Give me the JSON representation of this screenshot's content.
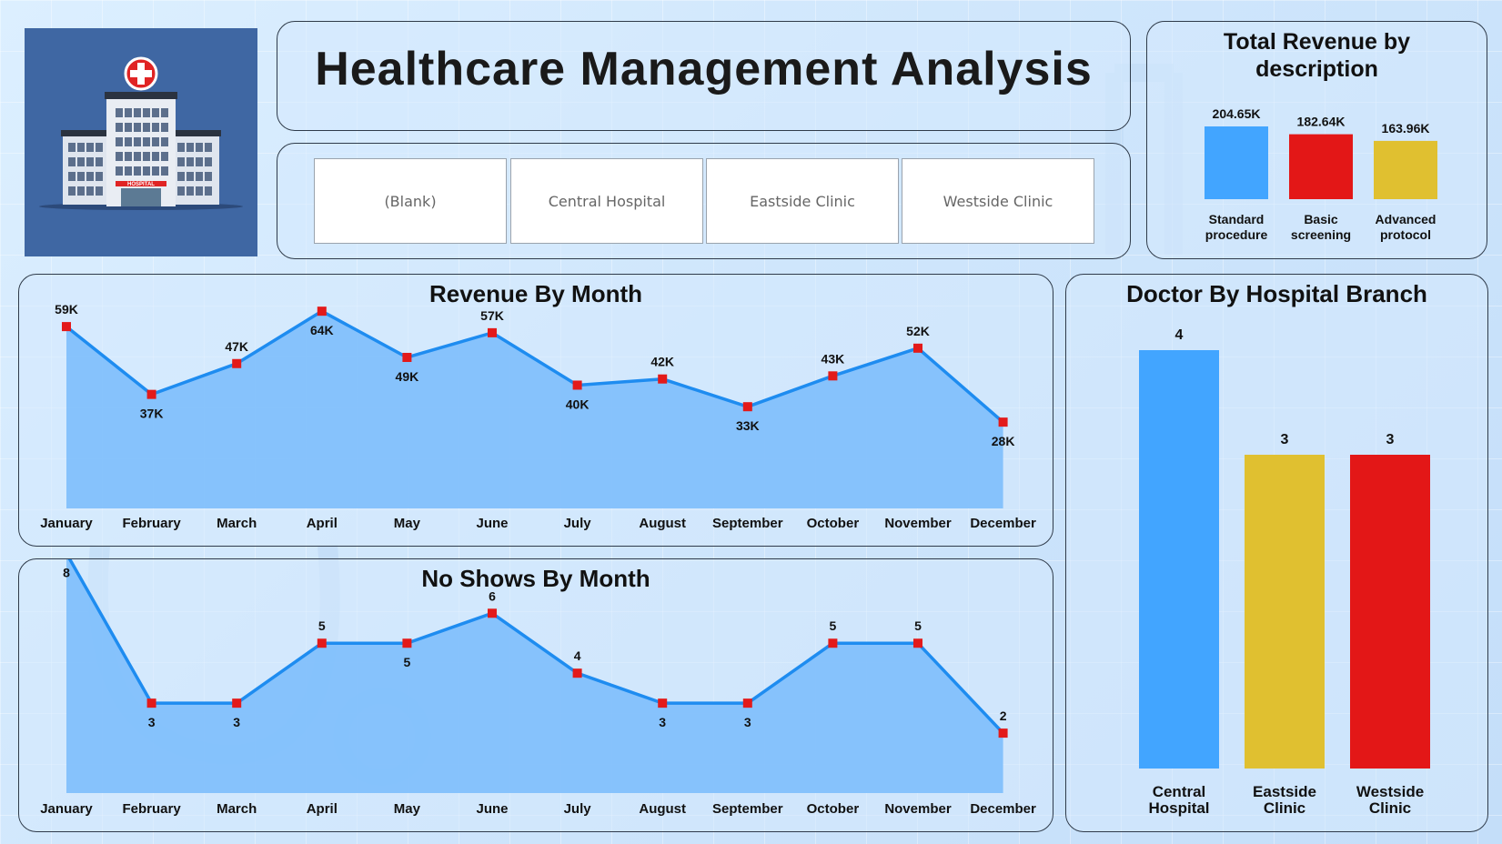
{
  "header": {
    "title": "Healthcare Management Analysis"
  },
  "logo": {
    "icon": "hospital-building-icon",
    "sign_text": "HOSPITAL"
  },
  "slicer": {
    "options": [
      "(Blank)",
      "Central Hospital",
      "Eastside Clinic",
      "Westside Clinic"
    ]
  },
  "revenue_by_description": {
    "title_line1": "Total Revenue by",
    "title_line2": "description"
  },
  "revenue_by_month": {
    "title": "Revenue By Month"
  },
  "no_shows_by_month": {
    "title": "No Shows By Month"
  },
  "doctor_by_branch": {
    "title": "Doctor By Hospital Branch"
  },
  "colors": {
    "blue": "#42a5ff",
    "red": "#e31717",
    "yellow": "#e0c030",
    "line": "#1e8cf0",
    "area": "#7dbefc",
    "marker": "#e31a1a",
    "logo_bg": "#3f67a3"
  },
  "chart_data": [
    {
      "type": "bar",
      "title": "Total Revenue by description",
      "categories": [
        [
          "Standard",
          "procedure"
        ],
        [
          "Basic",
          "screening"
        ],
        [
          "Advanced",
          "protocol"
        ]
      ],
      "values": [
        204.65,
        182.64,
        163.96
      ],
      "labels": [
        "204.65K",
        "182.64K",
        "163.96K"
      ],
      "bar_colors": [
        "#42a5ff",
        "#e31717",
        "#e0c030"
      ]
    },
    {
      "type": "area",
      "title": "Revenue By Month",
      "categories": [
        "January",
        "February",
        "March",
        "April",
        "May",
        "June",
        "July",
        "August",
        "September",
        "October",
        "November",
        "December"
      ],
      "values": [
        59,
        37,
        47,
        64,
        49,
        57,
        40,
        42,
        33,
        43,
        52,
        28
      ],
      "labels": [
        "59K",
        "37K",
        "47K",
        "64K",
        "49K",
        "57K",
        "40K",
        "42K",
        "33K",
        "43K",
        "52K",
        "28K"
      ],
      "label_pos": [
        "above",
        "below",
        "above",
        "below",
        "below",
        "above",
        "below",
        "above",
        "below",
        "above",
        "above",
        "below"
      ]
    },
    {
      "type": "area",
      "title": "No Shows By Month",
      "categories": [
        "January",
        "February",
        "March",
        "April",
        "May",
        "June",
        "July",
        "August",
        "September",
        "October",
        "November",
        "December"
      ],
      "values": [
        8,
        3,
        3,
        5,
        5,
        6,
        4,
        3,
        3,
        5,
        5,
        2
      ],
      "labels": [
        "8",
        "3",
        "3",
        "5",
        "5",
        "6",
        "4",
        "3",
        "3",
        "5",
        "5",
        "2"
      ],
      "label_pos": [
        "below",
        "below",
        "below",
        "above",
        "below",
        "above",
        "above",
        "below",
        "below",
        "above",
        "above",
        "above"
      ]
    },
    {
      "type": "bar",
      "title": "Doctor By Hospital Branch",
      "categories": [
        [
          "Central",
          "Hospital"
        ],
        [
          "Eastside",
          "Clinic"
        ],
        [
          "Westside",
          "Clinic"
        ]
      ],
      "values": [
        4,
        3,
        3
      ],
      "labels": [
        "4",
        "3",
        "3"
      ],
      "bar_colors": [
        "#42a5ff",
        "#e0c030",
        "#e31717"
      ]
    }
  ]
}
